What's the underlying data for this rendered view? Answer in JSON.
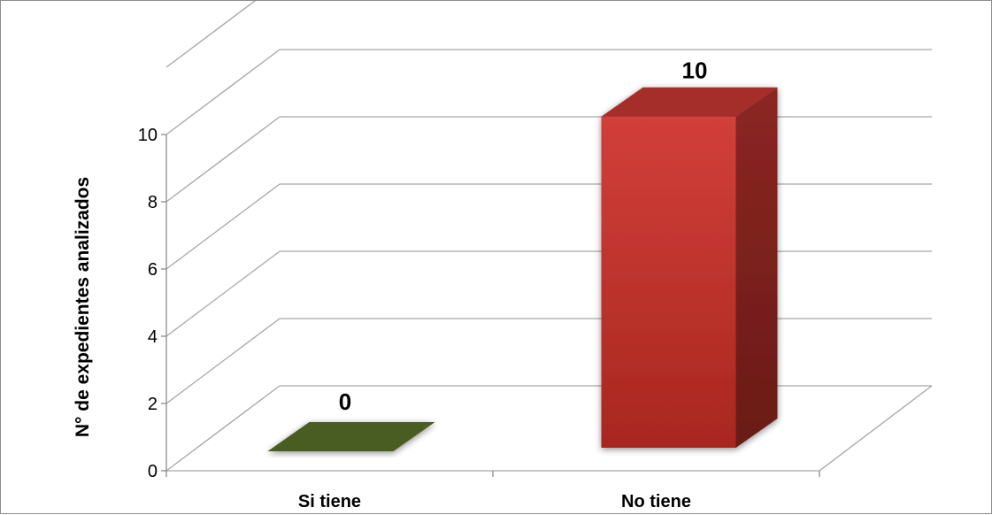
{
  "chart_data": {
    "type": "bar",
    "style": "3d-column",
    "categories": [
      "Si tiene",
      "No tiene"
    ],
    "values": [
      0,
      10
    ],
    "data_labels": [
      "0",
      "10"
    ],
    "title": "",
    "xlabel": "",
    "ylabel": "N° de expedientes analizados",
    "ylim": [
      0,
      12
    ],
    "yticks": [
      "0",
      "2",
      "4",
      "6",
      "8",
      "10"
    ],
    "grid": true,
    "legend": "none",
    "colors": {
      "si_tiene": "#4a5d23",
      "no_tiene": "#c0392b"
    }
  }
}
